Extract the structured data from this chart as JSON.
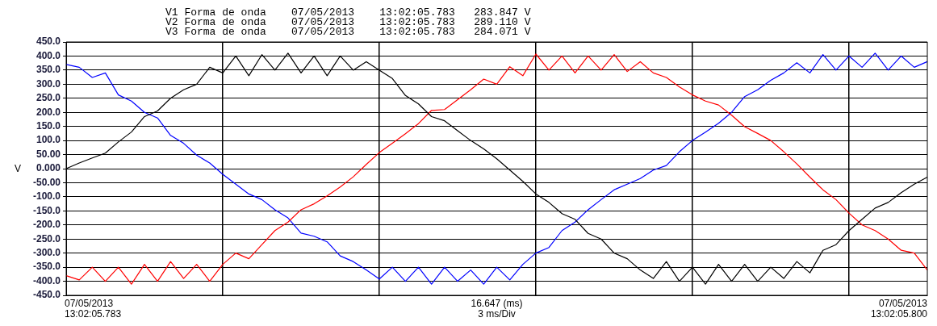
{
  "chart_data": {
    "type": "line",
    "annotations": [
      "V1 Forma de onda    07/05/2013    13:02:05.783   283.847 V",
      "V2 Forma de onda    07/05/2013    13:02:05.783   289.110 V",
      "V3 Forma de onda    07/05/2013    13:02:05.783   284.071 V",
      "07/05/2013\n13:02:05.783",
      "07/05/2013\n13:02:05.800",
      "3 ms/Div"
    ],
    "xlabel": "16.647 (ms)",
    "ylabel": "V",
    "categories": [
      null,
      null,
      null,
      null,
      null,
      null,
      null,
      null,
      null,
      null,
      null,
      null,
      null,
      null,
      null,
      null,
      null,
      null,
      null,
      null,
      null,
      null,
      null,
      null,
      null,
      null,
      null,
      null,
      null,
      null,
      null,
      null,
      null,
      null,
      null,
      null,
      null,
      null,
      null,
      null,
      null,
      null,
      null,
      null,
      null,
      null,
      null,
      null,
      null,
      null,
      null,
      null,
      null,
      null,
      null,
      null,
      null,
      null,
      null,
      null,
      null,
      null,
      null,
      null,
      null,
      null,
      null
    ],
    "series": [
      {
        "color": "#000000",
        "values": [
          0,
          20,
          38,
          55,
          95,
          130,
          185,
          205,
          250,
          280,
          300,
          360,
          340,
          400,
          330,
          405,
          350,
          410,
          340,
          400,
          330,
          400,
          350,
          380,
          350,
          320,
          260,
          230,
          185,
          170,
          135,
          100,
          70,
          35,
          -5,
          -45,
          -90,
          -120,
          -160,
          -180,
          -230,
          -250,
          -300,
          -320,
          -360,
          -390,
          -330,
          -400,
          -350,
          -410,
          -340,
          -400,
          -340,
          -400,
          -350,
          -390,
          -330,
          -370,
          -290,
          -270,
          -220,
          -180,
          -140,
          -120,
          -85,
          -55,
          -30
        ]
      },
      {
        "color": "#ff0000",
        "values": [
          -380,
          -395,
          -350,
          -400,
          -350,
          -410,
          -340,
          -400,
          -330,
          -390,
          -340,
          -400,
          -340,
          -300,
          -320,
          -270,
          -220,
          -190,
          -146,
          -125,
          -97,
          -65,
          -29,
          15,
          57,
          90,
          124,
          160,
          207,
          210,
          245,
          280,
          318,
          300,
          362,
          330,
          407,
          350,
          400,
          340,
          400,
          350,
          405,
          345,
          380,
          340,
          324,
          290,
          262,
          240,
          226,
          190,
          149,
          125,
          100,
          60,
          17,
          -30,
          -75,
          -110,
          -158,
          -200,
          -220,
          -250,
          -290,
          -300,
          -360
        ]
      },
      {
        "color": "#0000ff",
        "values": [
          370,
          360,
          324,
          340,
          262,
          240,
          200,
          180,
          118,
          90,
          48,
          20,
          -20,
          -55,
          -90,
          -110,
          -146,
          -175,
          -229,
          -240,
          -260,
          -310,
          -330,
          -360,
          -392,
          -350,
          -400,
          -350,
          -410,
          -350,
          -400,
          -360,
          -410,
          -350,
          -395,
          -340,
          -300,
          -280,
          -220,
          -190,
          -146,
          -110,
          -75,
          -55,
          -35,
          -5,
          11,
          60,
          100,
          130,
          161,
          200,
          256,
          280,
          314,
          340,
          376,
          340,
          405,
          350,
          400,
          360,
          410,
          350,
          400,
          360,
          380
        ]
      }
    ],
    "ylim": [
      -450,
      450
    ],
    "yticks": [
      {
        "value": -450,
        "label": "-450.0"
      },
      {
        "value": -400,
        "label": "-400.0"
      },
      {
        "value": -350,
        "label": "-350.0"
      },
      {
        "value": -300,
        "label": "-300.0"
      },
      {
        "value": -250,
        "label": "-250.0"
      },
      {
        "value": -200,
        "label": "-200.0"
      },
      {
        "value": -150,
        "label": "-150.0"
      },
      {
        "value": -100,
        "label": "-100.0"
      },
      {
        "value": -50,
        "label": "-50.00"
      },
      {
        "value": 0,
        "label": "0.000"
      },
      {
        "value": 50,
        "label": "50.00"
      },
      {
        "value": 100,
        "label": "100.0"
      },
      {
        "value": 150,
        "label": "150.0"
      },
      {
        "value": 200,
        "label": "200.0"
      },
      {
        "value": 250,
        "label": "250.0"
      },
      {
        "value": 300,
        "label": "300.0"
      },
      {
        "value": 350,
        "label": "350.0"
      },
      {
        "value": 400,
        "label": "400.0"
      },
      {
        "value": 450,
        "label": "450.0"
      }
    ],
    "grid": true,
    "legend": false,
    "tick_labels": "y"
  }
}
